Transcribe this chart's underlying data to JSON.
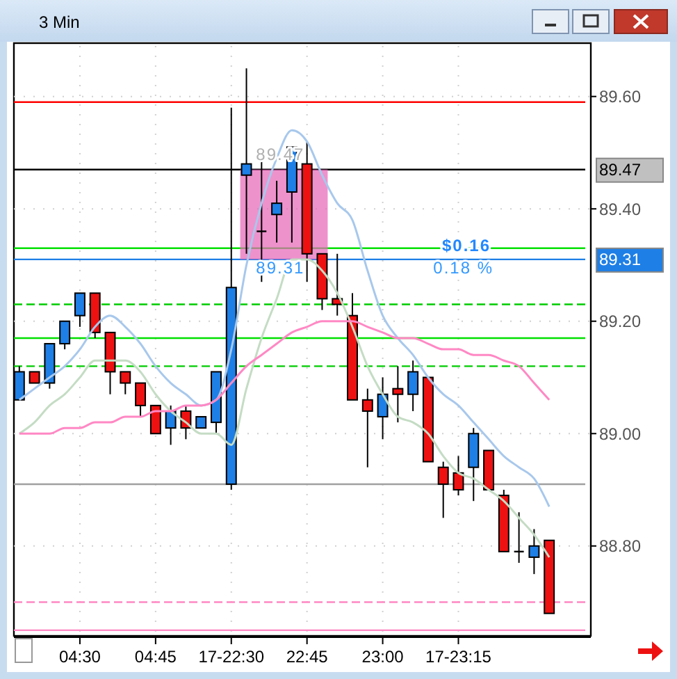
{
  "chart_data": {
    "type": "candlestick",
    "title": "3 Min",
    "categories": [
      null,
      null,
      null,
      null,
      "04:30",
      null,
      null,
      null,
      null,
      "04:45",
      null,
      null,
      null,
      null,
      "17-22:30",
      null,
      null,
      null,
      null,
      "22:45",
      null,
      null,
      null,
      null,
      "23:00",
      null,
      null,
      null,
      null,
      "17-23:15",
      null,
      null,
      null,
      null,
      null,
      null
    ],
    "ohlc": [
      [
        89.06,
        89.12,
        89.06,
        89.11
      ],
      [
        89.11,
        89.11,
        89.09,
        89.09
      ],
      [
        89.09,
        89.16,
        89.08,
        89.16
      ],
      [
        89.16,
        89.2,
        89.15,
        89.2
      ],
      [
        89.21,
        89.25,
        89.19,
        89.25
      ],
      [
        89.25,
        89.25,
        89.17,
        89.18
      ],
      [
        89.18,
        89.18,
        89.07,
        89.11
      ],
      [
        89.11,
        89.11,
        89.07,
        89.09
      ],
      [
        89.09,
        89.09,
        89.03,
        89.05
      ],
      [
        89.05,
        89.05,
        89.0,
        89.0
      ],
      [
        89.01,
        89.05,
        88.98,
        89.04
      ],
      [
        89.04,
        89.05,
        88.99,
        89.01
      ],
      [
        89.01,
        89.03,
        89.01,
        89.03
      ],
      [
        89.02,
        89.11,
        89.0,
        89.11
      ],
      [
        88.91,
        89.58,
        88.9,
        89.26
      ],
      [
        89.46,
        89.65,
        89.32,
        89.48
      ],
      [
        89.36,
        89.49,
        89.27,
        89.36
      ],
      [
        89.39,
        89.45,
        89.34,
        89.41
      ],
      [
        89.43,
        89.51,
        89.34,
        89.51
      ],
      [
        89.48,
        89.52,
        89.27,
        89.32
      ],
      [
        89.32,
        89.32,
        89.22,
        89.24
      ],
      [
        89.24,
        89.32,
        89.21,
        89.23
      ],
      [
        89.21,
        89.25,
        89.06,
        89.06
      ],
      [
        89.06,
        89.08,
        88.94,
        89.04
      ],
      [
        89.03,
        89.1,
        88.99,
        89.07
      ],
      [
        89.08,
        89.12,
        89.02,
        89.07
      ],
      [
        89.07,
        89.13,
        89.04,
        89.11
      ],
      [
        89.1,
        89.1,
        88.95,
        88.95
      ],
      [
        88.94,
        88.95,
        88.85,
        88.91
      ],
      [
        88.93,
        88.96,
        88.89,
        88.9
      ],
      [
        88.94,
        89.01,
        88.88,
        89.0
      ],
      [
        88.97,
        88.97,
        88.9,
        88.9
      ],
      [
        88.89,
        88.9,
        88.79,
        88.79
      ],
      [
        88.79,
        88.86,
        88.77,
        88.79
      ],
      [
        88.78,
        88.83,
        88.75,
        88.8
      ],
      [
        88.81,
        88.81,
        88.68,
        88.68
      ]
    ],
    "colors": [
      "#1e7fe6",
      "#ee1111",
      "#1e7fe6",
      "#1e7fe6",
      "#1e7fe6",
      "#ee1111",
      "#ee1111",
      "#ee1111",
      "#ee1111",
      "#ee1111",
      "#1e7fe6",
      "#ee1111",
      "#1e7fe6",
      "#1e7fe6",
      "#1e7fe6",
      "#1e7fe6",
      "#000000",
      "#1e7fe6",
      "#1e7fe6",
      "#ee1111",
      "#ee1111",
      "#ee1111",
      "#ee1111",
      "#ee1111",
      "#1e7fe6",
      "#ee1111",
      "#1e7fe6",
      "#ee1111",
      "#ee1111",
      "#ee1111",
      "#1e7fe6",
      "#ee1111",
      "#ee1111",
      "#000000",
      "#1e7fe6",
      "#ee1111"
    ],
    "series": [
      {
        "type": "line",
        "color": "#a8c8ec",
        "values": [
          89.06,
          89.08,
          89.1,
          89.12,
          89.15,
          89.19,
          89.21,
          89.19,
          89.16,
          89.12,
          89.09,
          89.07,
          89.05,
          89.06,
          89.15,
          89.3,
          89.41,
          89.49,
          89.54,
          89.52,
          89.46,
          89.41,
          89.38,
          89.29,
          89.21,
          89.17,
          89.14,
          89.1,
          89.07,
          89.05,
          89.02,
          88.99,
          88.96,
          88.94,
          88.92,
          88.87
        ]
      },
      {
        "type": "line",
        "color": "#c4dcc4",
        "values": [
          89.0,
          89.02,
          89.05,
          89.07,
          89.1,
          89.13,
          89.13,
          89.13,
          89.11,
          89.07,
          89.04,
          89.02,
          89.0,
          89.0,
          88.98,
          89.08,
          89.17,
          89.24,
          89.31,
          89.31,
          89.29,
          89.25,
          89.19,
          89.12,
          89.07,
          89.03,
          89.02,
          89.0,
          88.96,
          88.93,
          88.92,
          88.9,
          88.88,
          88.85,
          88.82,
          88.78
        ]
      },
      {
        "type": "line",
        "color": "#ff88c4",
        "values": [
          89.0,
          89.0,
          89.0,
          89.01,
          89.01,
          89.02,
          89.02,
          89.03,
          89.03,
          89.04,
          89.04,
          89.05,
          89.05,
          89.06,
          89.09,
          89.12,
          89.14,
          89.16,
          89.18,
          89.19,
          89.2,
          89.2,
          89.2,
          89.19,
          89.18,
          89.17,
          89.17,
          89.16,
          89.15,
          89.15,
          89.14,
          89.14,
          89.13,
          89.12,
          89.09,
          89.06
        ]
      }
    ],
    "ref_lines": [
      {
        "axis": "y",
        "value": 89.59,
        "color": "#ff0000",
        "line_style": "solid"
      },
      {
        "axis": "y",
        "value": 89.47,
        "label": "89.47",
        "color": "#000000",
        "line_style": "solid"
      },
      {
        "axis": "y",
        "value": 89.33,
        "color": "#00e000",
        "line_style": "solid"
      },
      {
        "axis": "y",
        "value": 89.31,
        "label": "89.31",
        "color": "#1e7fe6",
        "line_style": "solid"
      },
      {
        "axis": "y",
        "value": 89.23,
        "color": "#00cc00",
        "line_style": "dashed"
      },
      {
        "axis": "y",
        "value": 89.17,
        "color": "#00e000",
        "line_style": "solid"
      },
      {
        "axis": "y",
        "value": 89.12,
        "color": "#00cc00",
        "line_style": "dashed"
      },
      {
        "axis": "y",
        "value": 88.91,
        "color": "#a0a0a0",
        "line_style": "solid"
      },
      {
        "axis": "y",
        "value": 88.7,
        "color": "#ff88c4",
        "line_style": "dashed"
      },
      {
        "axis": "y",
        "value": 88.65,
        "color": "#ff88c4",
        "line_style": "solid"
      }
    ],
    "annotations": [
      "89.47",
      "89.31",
      "$0.16",
      "0.18 %"
    ],
    "ylim": [
      88.64,
      89.69
    ],
    "yticks": [
      {
        "value": 89.6,
        "label": "89.60"
      },
      {
        "value": 89.4,
        "label": "89.40"
      },
      {
        "value": 89.2,
        "label": "89.20"
      },
      {
        "value": 89.0,
        "label": "89.00"
      },
      {
        "value": 88.8,
        "label": "88.80"
      }
    ],
    "grid": true
  }
}
